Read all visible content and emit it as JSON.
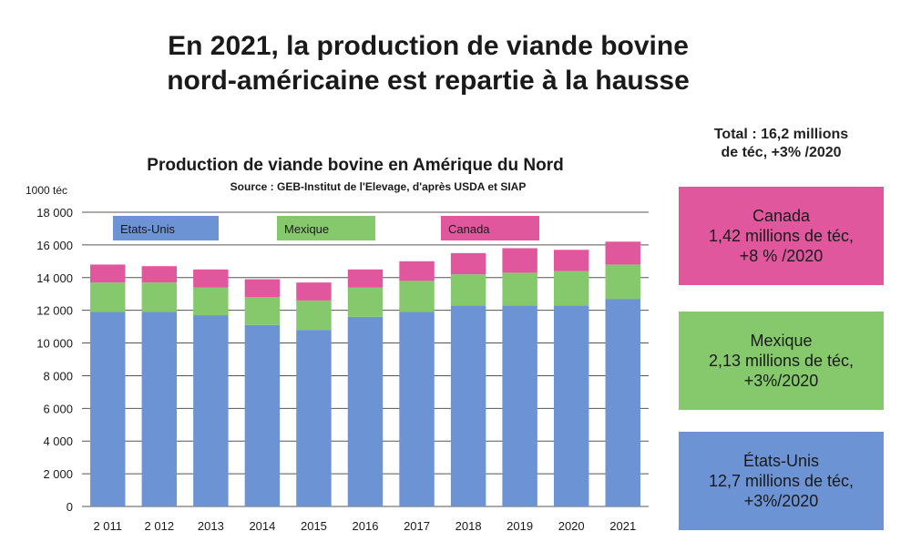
{
  "headline": {
    "line1": "En 2021, la production de viande bovine",
    "line2": "nord-américaine est repartie à la hausse"
  },
  "total": {
    "line1": "Total : 16,2 millions",
    "line2": "de téc, +3% /2020"
  },
  "boxes": {
    "canada": {
      "name": "Canada",
      "line2": "1,42 millions de téc,",
      "line3": "+8 % /2020",
      "color": "#e0579e"
    },
    "mexique": {
      "name": "Mexique",
      "line2": "2,13 millions de téc,",
      "line3": "+3%/2020",
      "color": "#86c96c"
    },
    "usa": {
      "name": "États-Unis",
      "line2": "12,7 millions de téc,",
      "line3": "+3%/2020",
      "color": "#6c93d3"
    }
  },
  "chart_data": {
    "type": "bar",
    "stacked": true,
    "title": "Production de viande bovine en Amérique du Nord",
    "subtitle": "Source : GEB-Institut de l'Elevage, d'après USDA et SIAP",
    "ylabel": "1000 téc",
    "ylim": [
      0,
      18000
    ],
    "yticks": [
      0,
      2000,
      4000,
      6000,
      8000,
      10000,
      12000,
      14000,
      16000,
      18000
    ],
    "ytick_labels": [
      "0",
      "2 000",
      "4 000",
      "6 000",
      "8 000",
      "10 000",
      "12 000",
      "14 000",
      "16 000",
      "18 000"
    ],
    "categories": [
      "2 011",
      "2 012",
      "2013",
      "2014",
      "2015",
      "2016",
      "2017",
      "2018",
      "2019",
      "2020",
      "2021"
    ],
    "grid": true,
    "legend_position": "top",
    "series": [
      {
        "name": "Etats-Unis",
        "color": "#6c93d3",
        "values": [
          11900,
          11900,
          11700,
          11100,
          10800,
          11600,
          11900,
          12300,
          12300,
          12300,
          12700
        ]
      },
      {
        "name": "Mexique",
        "color": "#86c96c",
        "values": [
          1800,
          1800,
          1700,
          1700,
          1800,
          1800,
          1900,
          1900,
          2000,
          2100,
          2100
        ]
      },
      {
        "name": "Canada",
        "color": "#e0579e",
        "values": [
          1100,
          1000,
          1100,
          1100,
          1100,
          1100,
          1200,
          1300,
          1500,
          1300,
          1400
        ]
      }
    ]
  }
}
